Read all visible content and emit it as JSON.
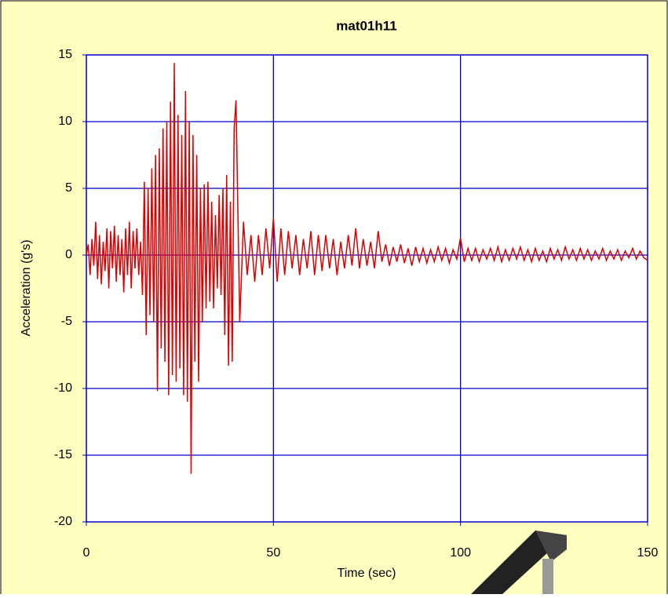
{
  "chart_data": {
    "type": "line",
    "title": "mat01h11",
    "x_label": "Time (sec)",
    "y_label": "Acceleration (g's)",
    "x": [
      0,
      0.5,
      1,
      1.5,
      2,
      2.5,
      3,
      3.5,
      4,
      4.5,
      5,
      5.5,
      6,
      6.5,
      7,
      7.5,
      8,
      8.5,
      9,
      9.5,
      10,
      10.5,
      11,
      11.5,
      12,
      12.5,
      13,
      13.5,
      14,
      14.5,
      15,
      15.5,
      16,
      16.5,
      17,
      17.5,
      18,
      18.5,
      19,
      19.5,
      20,
      20.5,
      21,
      21.5,
      22,
      22.5,
      23,
      23.5,
      24,
      24.5,
      25,
      25.5,
      26,
      26.5,
      27,
      27.5,
      28,
      28.5,
      29,
      29.5,
      30,
      30.5,
      31,
      31.5,
      32,
      32.5,
      33,
      33.5,
      34,
      34.5,
      35,
      35.5,
      36,
      36.5,
      37,
      37.5,
      38,
      38.5,
      39,
      39.5,
      40,
      41,
      42,
      43,
      44,
      45,
      46,
      47,
      48,
      49,
      50,
      51,
      52,
      53,
      54,
      55,
      56,
      57,
      58,
      59,
      60,
      61,
      62,
      63,
      64,
      65,
      66,
      67,
      68,
      69,
      70,
      71,
      72,
      73,
      74,
      75,
      76,
      77,
      78,
      79,
      80,
      81,
      82,
      83,
      84,
      85,
      86,
      87,
      88,
      89,
      90,
      91,
      92,
      93,
      94,
      95,
      96,
      97,
      98,
      99,
      100,
      101,
      102,
      103,
      104,
      105,
      106,
      107,
      108,
      109,
      110,
      111,
      112,
      113,
      114,
      115,
      116,
      117,
      118,
      119,
      120,
      121,
      122,
      123,
      124,
      125,
      126,
      127,
      128,
      129,
      130,
      131,
      132,
      133,
      134,
      135,
      136,
      137,
      138,
      139,
      140,
      141,
      142,
      143,
      144,
      145,
      146,
      147,
      148,
      149,
      150
    ],
    "values": [
      0,
      0.8,
      -1.5,
      1.2,
      -0.8,
      2.5,
      -1.8,
      1.5,
      -2.2,
      1.0,
      -1.2,
      2.0,
      -2.5,
      1.8,
      -1.0,
      2.2,
      -2.0,
      1.5,
      -1.5,
      1.2,
      -2.8,
      2.0,
      -1.5,
      2.5,
      -2.5,
      1.8,
      -1.0,
      2.0,
      -1.5,
      1.0,
      -3.0,
      5.5,
      -6.0,
      5.0,
      -4.5,
      6.5,
      -5.0,
      7.5,
      -10.2,
      8.0,
      -7.0,
      9.5,
      -8.0,
      10.0,
      -10.5,
      11.5,
      -9.0,
      14.4,
      -9.5,
      10.5,
      -8.5,
      9.0,
      -10.5,
      12.3,
      -11.0,
      10.0,
      -16.4,
      9.0,
      -8.0,
      7.5,
      -9.5,
      5.0,
      -5.0,
      5.3,
      -4.0,
      5.5,
      -3.5,
      4.0,
      -4.0,
      3.0,
      -2.5,
      4.5,
      -3.0,
      5.0,
      -6.0,
      6.0,
      -8.3,
      4.0,
      -8.0,
      9.5,
      11.6,
      -5.0,
      2.5,
      -1.5,
      1.5,
      -2.0,
      1.5,
      -1.5,
      2.0,
      -1.0,
      2.8,
      -2.0,
      2.0,
      -1.5,
      1.8,
      -1.0,
      1.5,
      -1.5,
      1.2,
      -1.0,
      1.8,
      -1.5,
      1.5,
      -1.2,
      1.5,
      -1.0,
      1.2,
      -1.5,
      1.0,
      -1.0,
      1.5,
      -0.8,
      2.0,
      -1.0,
      1.2,
      -0.8,
      1.0,
      -1.0,
      1.8,
      -0.5,
      0.8,
      -0.8,
      0.6,
      -0.5,
      0.8,
      -0.6,
      0.5,
      -0.8,
      0.6,
      -0.5,
      0.5,
      -0.6,
      0.4,
      -0.5,
      0.6,
      -0.4,
      0.5,
      -0.6,
      0.4,
      -0.3,
      1.3,
      -0.5,
      0.5,
      -0.4,
      0.5,
      -0.5,
      0.4,
      -0.3,
      0.5,
      -0.4,
      0.6,
      -0.5,
      0.4,
      -0.4,
      0.5,
      -0.3,
      0.6,
      -0.4,
      0.4,
      -0.5,
      0.5,
      -0.4,
      0.3,
      -0.5,
      0.5,
      -0.3,
      0.4,
      -0.4,
      0.6,
      -0.3,
      0.4,
      -0.4,
      0.5,
      -0.3,
      0.4,
      -0.4,
      0.3,
      -0.3,
      0.5,
      -0.4,
      0.3,
      -0.3,
      0.4,
      -0.4,
      0.3,
      -0.2,
      0.5,
      -0.3,
      0.3,
      -0.2,
      -0.4
    ],
    "color": "#dd0000",
    "grid_color": "#0000cc",
    "xlim": [
      0,
      150
    ],
    "xticks": [
      0,
      50,
      100,
      150
    ],
    "ylim": [
      -20,
      15
    ],
    "yticks": [
      -20,
      -15,
      -10,
      -5,
      0,
      5,
      10,
      15
    ],
    "grid": true
  }
}
